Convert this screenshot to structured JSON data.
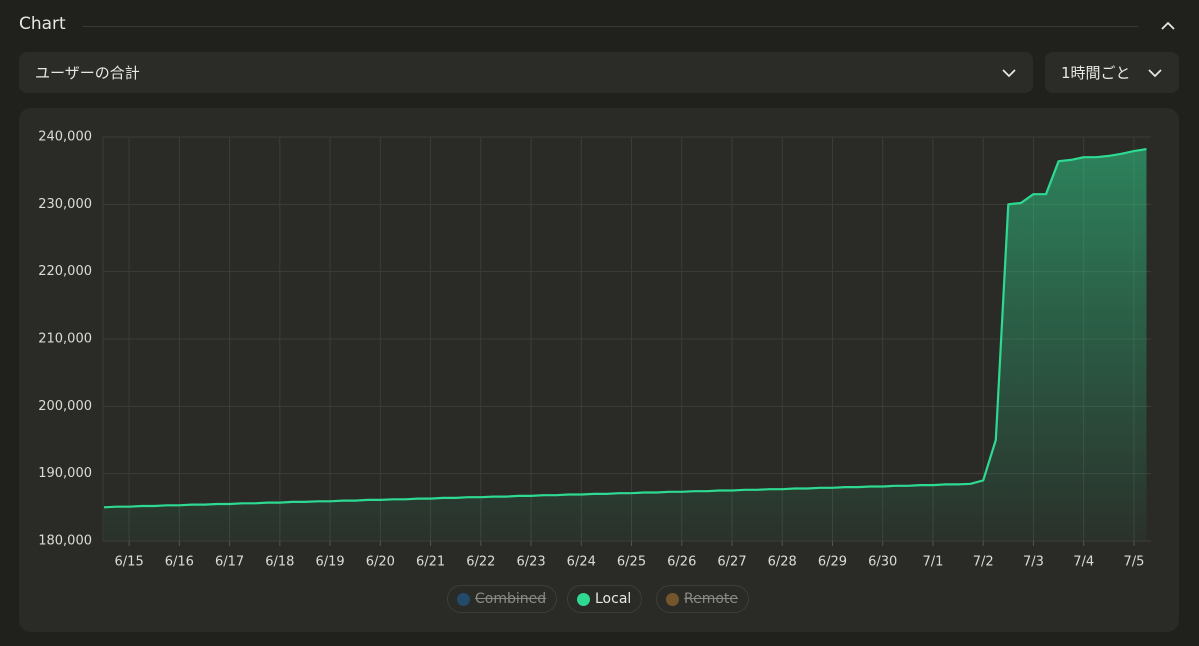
{
  "header": {
    "title": "Chart"
  },
  "controls": {
    "metric": "ユーザーの合計",
    "interval": "1時間ごと"
  },
  "chart_data": {
    "type": "line",
    "categories": [
      null,
      null,
      "6/15",
      null,
      null,
      null,
      "6/16",
      null,
      null,
      null,
      "6/17",
      null,
      null,
      null,
      "6/18",
      null,
      null,
      null,
      "6/19",
      null,
      null,
      null,
      "6/20",
      null,
      null,
      null,
      "6/21",
      null,
      null,
      null,
      "6/22",
      null,
      null,
      null,
      "6/23",
      null,
      null,
      null,
      "6/24",
      null,
      null,
      null,
      "6/25",
      null,
      null,
      null,
      "6/26",
      null,
      null,
      null,
      "6/27",
      null,
      null,
      null,
      "6/28",
      null,
      null,
      null,
      "6/29",
      null,
      null,
      null,
      "6/30",
      null,
      null,
      null,
      "7/1",
      null,
      null,
      null,
      "7/2",
      null,
      null,
      null,
      "7/3",
      null,
      null,
      null,
      "7/4",
      null,
      null,
      null,
      "7/5",
      null
    ],
    "series": [
      {
        "name": "Combined",
        "color": "#1f5f9a",
        "hidden": true
      },
      {
        "name": "Local",
        "color": "#2ed991",
        "hidden": false,
        "values": [
          185000,
          185100,
          185100,
          185200,
          185200,
          185300,
          185300,
          185400,
          185400,
          185500,
          185500,
          185600,
          185600,
          185700,
          185700,
          185800,
          185800,
          185900,
          185900,
          186000,
          186000,
          186100,
          186100,
          186200,
          186200,
          186300,
          186300,
          186400,
          186400,
          186500,
          186500,
          186600,
          186600,
          186700,
          186700,
          186800,
          186800,
          186900,
          186900,
          187000,
          187000,
          187100,
          187100,
          187200,
          187200,
          187300,
          187300,
          187400,
          187400,
          187500,
          187500,
          187600,
          187600,
          187700,
          187700,
          187800,
          187800,
          187900,
          187900,
          188000,
          188000,
          188100,
          188100,
          188200,
          188200,
          188300,
          188300,
          188400,
          188400,
          188500,
          189000,
          195000,
          230000,
          230200,
          231500,
          231500,
          236400,
          236600,
          237000,
          237000,
          237200,
          237500,
          237900,
          238200
        ]
      },
      {
        "name": "Remote",
        "color": "#a8742f",
        "hidden": true
      }
    ],
    "ylim": [
      180000,
      240000
    ],
    "yticks": [
      {
        "value": 180000,
        "label": "180,000"
      },
      {
        "value": 190000,
        "label": "190,000"
      },
      {
        "value": 200000,
        "label": "200,000"
      },
      {
        "value": 210000,
        "label": "210,000"
      },
      {
        "value": 220000,
        "label": "220,000"
      },
      {
        "value": 230000,
        "label": "230,000"
      },
      {
        "value": 240000,
        "label": "240,000"
      }
    ],
    "grid": true,
    "area": true
  }
}
